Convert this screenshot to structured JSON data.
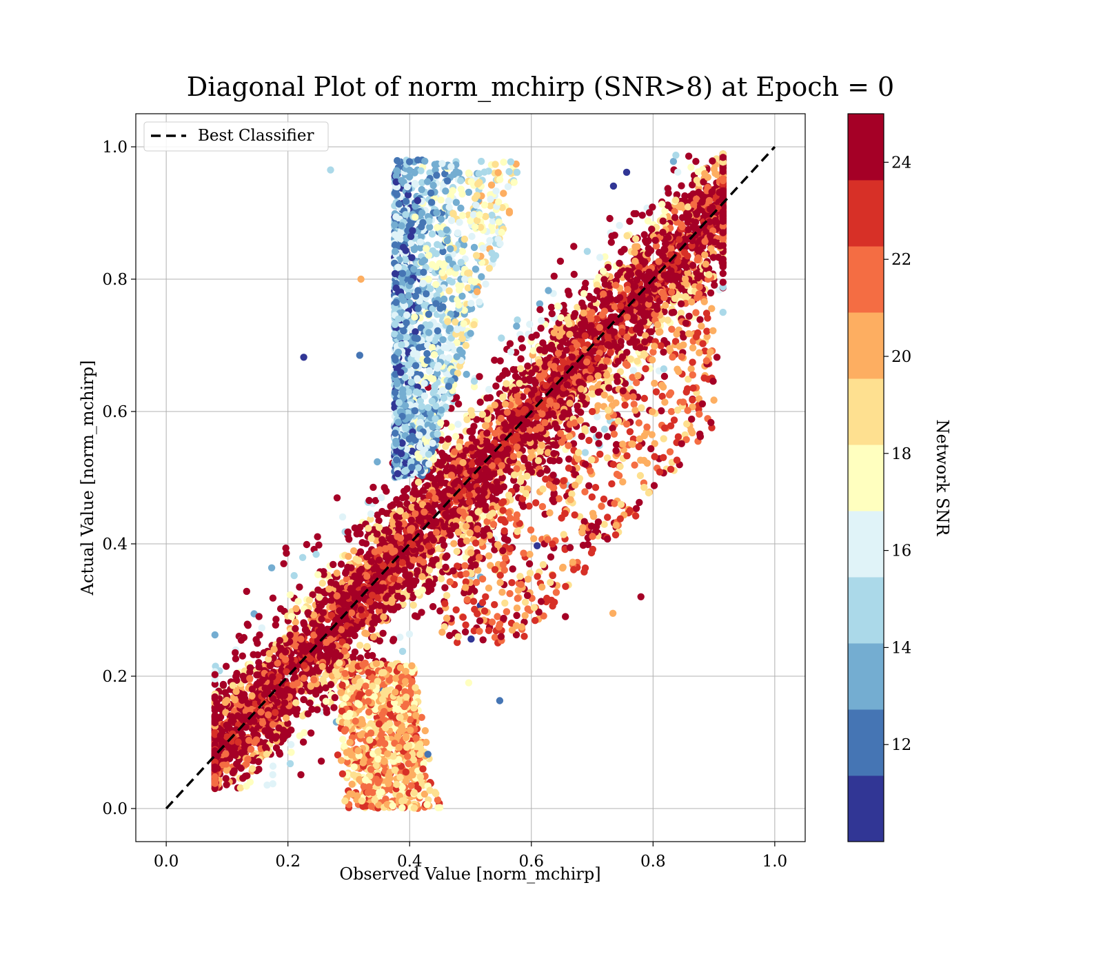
{
  "chart_data": {
    "type": "scatter",
    "title": "Diagonal Plot of norm_mchirp (SNR>8) at Epoch = 0",
    "xlabel": "Observed Value [norm_mchirp]",
    "ylabel": "Actual Value [norm_mchirp]",
    "xlim": [
      -0.05,
      1.05
    ],
    "ylim": [
      -0.05,
      1.05
    ],
    "xticks": [
      "0.0",
      "0.2",
      "0.4",
      "0.6",
      "0.8",
      "1.0"
    ],
    "yticks": [
      "0.0",
      "0.2",
      "0.4",
      "0.6",
      "0.8",
      "1.0"
    ],
    "grid": true,
    "legend": {
      "position": "top-left",
      "entries": [
        "Best Classifier"
      ]
    },
    "reference_line": {
      "name": "Best Classifier",
      "style": "dashed",
      "color": "#000000",
      "x": [
        0.0,
        1.0
      ],
      "y": [
        0.0,
        1.0
      ]
    },
    "colorbar": {
      "label": "Network SNR",
      "range": [
        10,
        25
      ],
      "ticks": [
        "12",
        "14",
        "16",
        "18",
        "20",
        "22",
        "24"
      ],
      "tick_values": [
        12,
        14,
        16,
        18,
        20,
        22,
        24
      ],
      "colormap": "RdYlBu_r",
      "levels": [
        "#313695",
        "#4575b4",
        "#74add1",
        "#abd9e9",
        "#e0f3f8",
        "#ffffbf",
        "#fee090",
        "#fdae61",
        "#f46d43",
        "#d73027",
        "#a50026"
      ]
    },
    "clusters": [
      {
        "label": "diagonal main band",
        "color_hint": "high SNR (22-25)",
        "x_range": [
          0.1,
          0.92
        ],
        "y_range": [
          0.03,
          0.99
        ],
        "trend": "y ≈ x"
      },
      {
        "label": "upper-left fan",
        "color_hint": "low-mid SNR (10-18)",
        "x_range": [
          0.37,
          0.58
        ],
        "y_range": [
          0.5,
          0.98
        ]
      },
      {
        "label": "lower-right fan",
        "color_hint": "mid-high SNR (18-22)",
        "x_range": [
          0.3,
          0.45
        ],
        "y_range": [
          0.0,
          0.22
        ]
      }
    ],
    "outliers": [
      {
        "x": 0.27,
        "y": 0.965,
        "snr": 15
      },
      {
        "x": 0.226,
        "y": 0.682,
        "snr": 11
      },
      {
        "x": 0.318,
        "y": 0.685,
        "snr": 12
      },
      {
        "x": 0.32,
        "y": 0.8,
        "snr": 20
      },
      {
        "x": 0.548,
        "y": 0.163,
        "snr": 12
      },
      {
        "x": 0.78,
        "y": 0.32,
        "snr": 25
      },
      {
        "x": 0.656,
        "y": 0.29,
        "snr": 24
      },
      {
        "x": 0.734,
        "y": 0.295,
        "snr": 20
      },
      {
        "x": 0.905,
        "y": 0.682,
        "snr": 24
      },
      {
        "x": 0.43,
        "y": 0.082,
        "snr": 12
      },
      {
        "x": 0.497,
        "y": 0.19,
        "snr": 18
      }
    ]
  }
}
